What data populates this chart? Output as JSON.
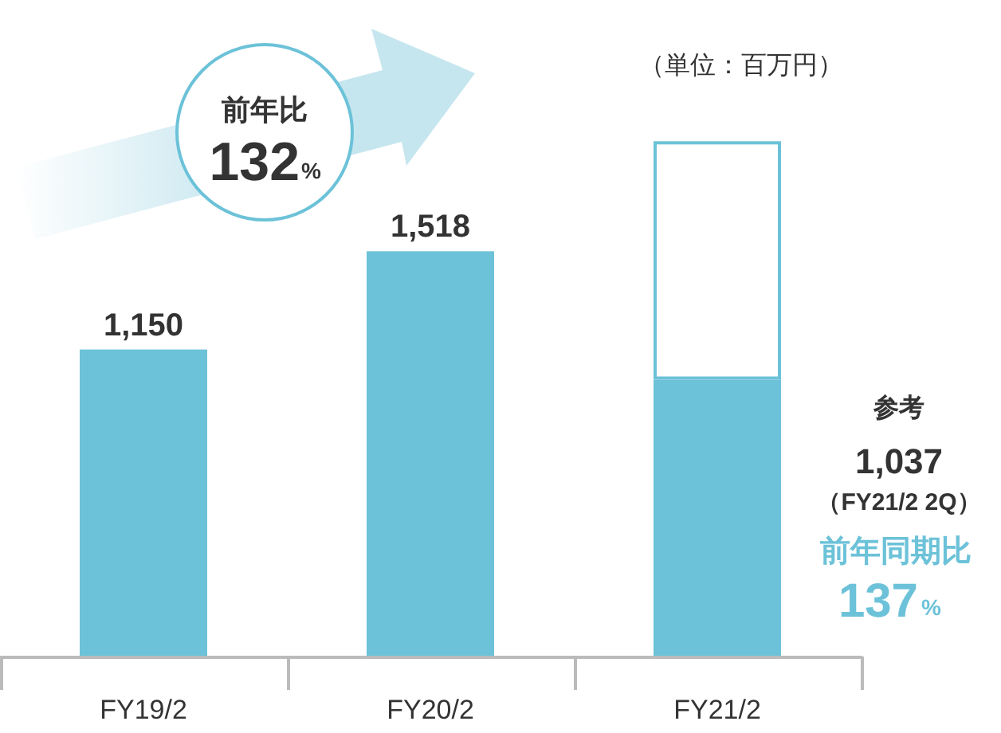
{
  "chart_data": {
    "type": "bar",
    "stacked": true,
    "categories": [
      "FY19/2",
      "FY20/2",
      "FY21/2"
    ],
    "series": [
      {
        "color": "#6cc2d8",
        "values": [
          1150,
          1518,
          1037
        ],
        "value_labels": [
          "1,150",
          "1,518",
          null
        ]
      },
      {
        "color": "#6cc2d8",
        "values": [
          null,
          null,
          893
        ]
      }
    ],
    "annotations": [
      "（単位：百万円）",
      "前年比",
      "132",
      "%",
      "参考",
      "1,037",
      "（FY21/2 2Q）",
      "前年同期比",
      "137",
      "%"
    ],
    "tick_labels": "x"
  }
}
